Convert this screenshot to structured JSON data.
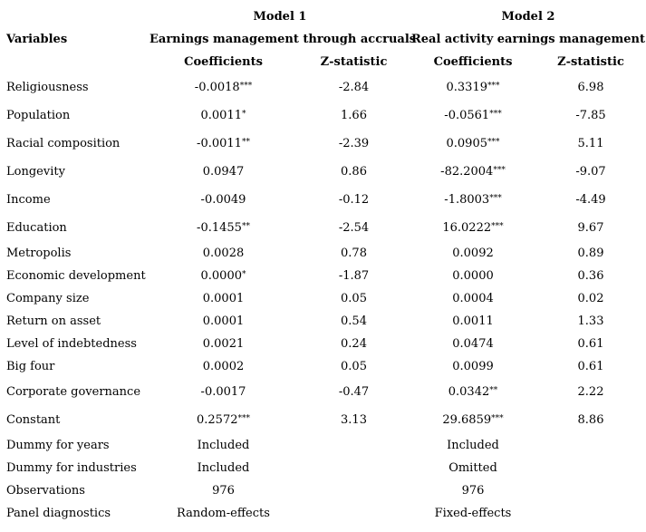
{
  "header": {
    "model1": "Model 1",
    "model2": "Model 2",
    "variables": "Variables",
    "model1_sub": "Earnings management through accruals",
    "model2_sub": "Real activity earnings management",
    "coef1": "Coefficients",
    "z1": "Z-statistic",
    "coef2": "Coefficients",
    "z2": "Z-statistic"
  },
  "rows": [
    {
      "label": "Religiousness",
      "c1": "-0.0018",
      "s1": "***",
      "z1": "-2.84",
      "c2": "0.3319",
      "s2": "***",
      "z2": "6.98"
    },
    {
      "label": "Population",
      "c1": "0.0011",
      "s1": "*",
      "z1": "1.66",
      "c2": "-0.0561",
      "s2": "***",
      "z2": "-7.85"
    },
    {
      "label": "Racial composition",
      "c1": "-0.0011",
      "s1": "**",
      "z1": "-2.39",
      "c2": "0.0905",
      "s2": "***",
      "z2": "5.11"
    },
    {
      "label": "Longevity",
      "c1": "0.0947",
      "s1": "",
      "z1": "0.86",
      "c2": "-82.2004",
      "s2": "***",
      "z2": "-9.07"
    },
    {
      "label": "Income",
      "c1": "-0.0049",
      "s1": "",
      "z1": "-0.12",
      "c2": "-1.8003",
      "s2": "***",
      "z2": "-4.49"
    },
    {
      "label": "Education",
      "c1": "-0.1455",
      "s1": "**",
      "z1": "-2.54",
      "c2": "16.0222",
      "s2": "***",
      "z2": "9.67"
    },
    {
      "label": "Metropolis",
      "c1": "0.0028",
      "s1": "",
      "z1": "0.78",
      "c2": "0.0092",
      "s2": "",
      "z2": "0.89"
    },
    {
      "label": "Economic development",
      "c1": "0.0000",
      "s1": "*",
      "z1": "-1.87",
      "c2": "0.0000",
      "s2": "",
      "z2": "0.36"
    },
    {
      "label": "Company size",
      "c1": "0.0001",
      "s1": "",
      "z1": "0.05",
      "c2": "0.0004",
      "s2": "",
      "z2": "0.02"
    },
    {
      "label": "Return on asset",
      "c1": "0.0001",
      "s1": "",
      "z1": "0.54",
      "c2": "0.0011",
      "s2": "",
      "z2": "1.33"
    },
    {
      "label": "Level of indebtedness",
      "c1": "0.0021",
      "s1": "",
      "z1": "0.24",
      "c2": "0.0474",
      "s2": "",
      "z2": "0.61"
    },
    {
      "label": "Big four",
      "c1": "0.0002",
      "s1": "",
      "z1": "0.05",
      "c2": "0.0099",
      "s2": "",
      "z2": "0.61"
    },
    {
      "label": "Corporate governance",
      "c1": "-0.0017",
      "s1": "",
      "z1": "-0.47",
      "c2": "0.0342",
      "s2": "**",
      "z2": "2.22"
    },
    {
      "label": "Constant",
      "c1": "0.2572",
      "s1": "***",
      "z1": "3.13",
      "c2": "29.6859",
      "s2": "***",
      "z2": "8.86"
    },
    {
      "label": "Dummy for years",
      "c1": "Included",
      "s1": "",
      "z1": "",
      "c2": "Included",
      "s2": "",
      "z2": ""
    },
    {
      "label": "Dummy for industries",
      "c1": "Included",
      "s1": "",
      "z1": "",
      "c2": "Omitted",
      "s2": "",
      "z2": ""
    },
    {
      "label": "Observations",
      "c1": "976",
      "s1": "",
      "z1": "",
      "c2": "976",
      "s2": "",
      "z2": ""
    },
    {
      "label": "Panel diagnostics",
      "c1": "Random-effects",
      "s1": "",
      "z1": "",
      "c2": "Fixed-effects",
      "s2": "",
      "z2": ""
    }
  ]
}
